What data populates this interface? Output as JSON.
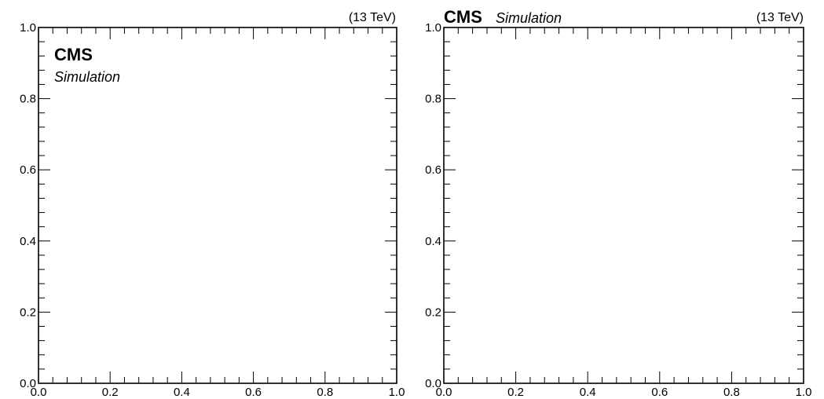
{
  "chart_data": [
    {
      "type": "scatter",
      "title": "",
      "xlabel": "",
      "ylabel": "",
      "xlim": [
        0.0,
        1.0
      ],
      "ylim": [
        0.0,
        1.0
      ],
      "x_ticks": [
        "0.0",
        "0.2",
        "0.4",
        "0.6",
        "0.8",
        "1.0"
      ],
      "y_ticks": [
        "0.0",
        "0.2",
        "0.4",
        "0.6",
        "0.8",
        "1.0"
      ],
      "grid": false,
      "series": [],
      "experiment_label": "CMS",
      "experiment_sublabel": "Simulation",
      "experiment_label_position": "inside-top-left",
      "energy_label": "(13 TeV)"
    },
    {
      "type": "scatter",
      "title": "",
      "xlabel": "",
      "ylabel": "",
      "xlim": [
        0.0,
        1.0
      ],
      "ylim": [
        0.0,
        1.0
      ],
      "x_ticks": [
        "0.0",
        "0.2",
        "0.4",
        "0.6",
        "0.8",
        "1.0"
      ],
      "y_ticks": [
        "0.0",
        "0.2",
        "0.4",
        "0.6",
        "0.8",
        "1.0"
      ],
      "grid": false,
      "series": [],
      "experiment_label": "CMS",
      "experiment_sublabel": "Simulation",
      "experiment_label_position": "above-top-left",
      "energy_label": "(13 TeV)"
    }
  ]
}
